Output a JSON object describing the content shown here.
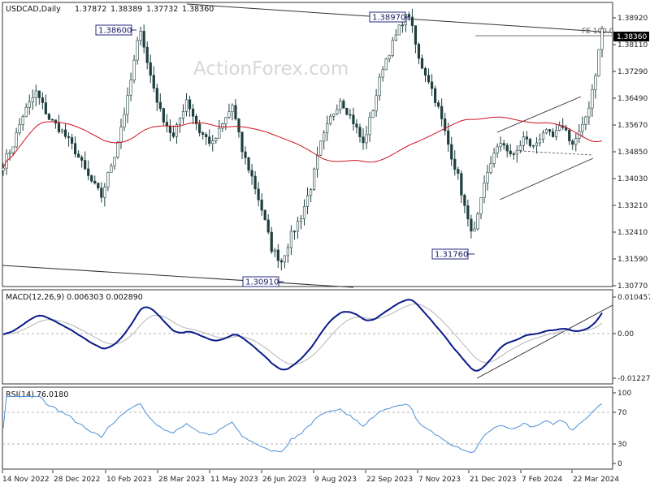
{
  "chart_data": [
    {
      "type": "candlestick",
      "title": "USDCAD,Daily",
      "ohlc_header": [
        "1.37872",
        "1.38389",
        "1.37732",
        "1.38360"
      ],
      "watermark": "ActionForex.com",
      "y_axis_ticks": [
        "1.38920",
        "1.38110",
        "1.37290",
        "1.36490",
        "1.35670",
        "1.34850",
        "1.34030",
        "1.33210",
        "1.32410",
        "1.31590",
        "1.30770"
      ],
      "ylim": [
        1.3045,
        1.3912
      ],
      "last_price": "1.38360",
      "fe_label": "FE 100.0",
      "fe_level": 1.3836,
      "x_axis_ticks": [
        "14 Nov 2022",
        "28 Dec 2022",
        "10 Feb 2023",
        "28 Mar 2023",
        "11 May 2023",
        "26 Jun 2023",
        "9 Aug 2023",
        "22 Sep 2023",
        "7 Nov 2023",
        "21 Dec 2023",
        "7 Feb 2024",
        "22 Mar 2024"
      ],
      "annotations": [
        {
          "text": "1.38600",
          "date_index": 42,
          "value": 1.386
        },
        {
          "text": "1.38970",
          "date_index": 124,
          "value": 1.3897
        },
        {
          "text": "1.30910",
          "date_index": 85,
          "value": 1.3091
        },
        {
          "text": "1.31760",
          "date_index": 143,
          "value": 1.3176
        }
      ],
      "path_keys": [
        [
          0,
          1.342
        ],
        [
          3,
          1.348
        ],
        [
          6,
          1.357
        ],
        [
          10,
          1.364
        ],
        [
          14,
          1.356
        ],
        [
          18,
          1.352
        ],
        [
          22,
          1.346
        ],
        [
          26,
          1.338
        ],
        [
          30,
          1.332
        ],
        [
          34,
          1.345
        ],
        [
          38,
          1.362
        ],
        [
          41,
          1.379
        ],
        [
          42,
          1.384
        ],
        [
          44,
          1.373
        ],
        [
          48,
          1.358
        ],
        [
          52,
          1.35
        ],
        [
          56,
          1.362
        ],
        [
          60,
          1.352
        ],
        [
          64,
          1.348
        ],
        [
          68,
          1.356
        ],
        [
          70,
          1.36
        ],
        [
          73,
          1.346
        ],
        [
          76,
          1.338
        ],
        [
          79,
          1.328
        ],
        [
          82,
          1.316
        ],
        [
          85,
          1.312
        ],
        [
          88,
          1.32
        ],
        [
          91,
          1.326
        ],
        [
          94,
          1.335
        ],
        [
          97,
          1.348
        ],
        [
          100,
          1.356
        ],
        [
          103,
          1.362
        ],
        [
          107,
          1.355
        ],
        [
          110,
          1.348
        ],
        [
          113,
          1.359
        ],
        [
          116,
          1.372
        ],
        [
          119,
          1.379
        ],
        [
          122,
          1.386
        ],
        [
          124,
          1.388
        ],
        [
          127,
          1.374
        ],
        [
          130,
          1.368
        ],
        [
          133,
          1.359
        ],
        [
          136,
          1.348
        ],
        [
          139,
          1.338
        ],
        [
          142,
          1.324
        ],
        [
          144,
          1.321
        ],
        [
          147,
          1.335
        ],
        [
          150,
          1.346
        ],
        [
          153,
          1.348
        ],
        [
          156,
          1.344
        ],
        [
          159,
          1.35
        ],
        [
          162,
          1.347
        ],
        [
          165,
          1.352
        ],
        [
          168,
          1.35
        ],
        [
          171,
          1.354
        ],
        [
          174,
          1.348
        ],
        [
          177,
          1.353
        ],
        [
          179,
          1.36
        ],
        [
          181,
          1.37
        ],
        [
          183,
          1.3836
        ]
      ],
      "series": [
        {
          "name": "MACD(12,26,9)",
          "values_header": "0.006303 0.002890"
        },
        {
          "name": "RSI(14)",
          "values_header": "76.0180"
        }
      ],
      "macd_panel": {
        "label": "MACD(12,26,9) 0.006303 0.002890",
        "ticks": [
          "0.010457",
          "0.00",
          "-0.012276"
        ],
        "ylim": [
          -0.0135,
          0.0115
        ]
      },
      "rsi_panel": {
        "label": "RSI(14) 76.0180",
        "ticks": [
          "100",
          "70",
          "30",
          "0"
        ],
        "ylim": [
          0,
          100
        ],
        "levels": [
          70,
          30
        ]
      },
      "colors": {
        "candle": "#1f3f3f",
        "ma": "#d01020",
        "macd": "#0a1a8a",
        "signal": "#b5b5b5",
        "rsi": "#4a90d8",
        "channel": "#222222",
        "annotation_border": "#2a2a80"
      }
    }
  ]
}
